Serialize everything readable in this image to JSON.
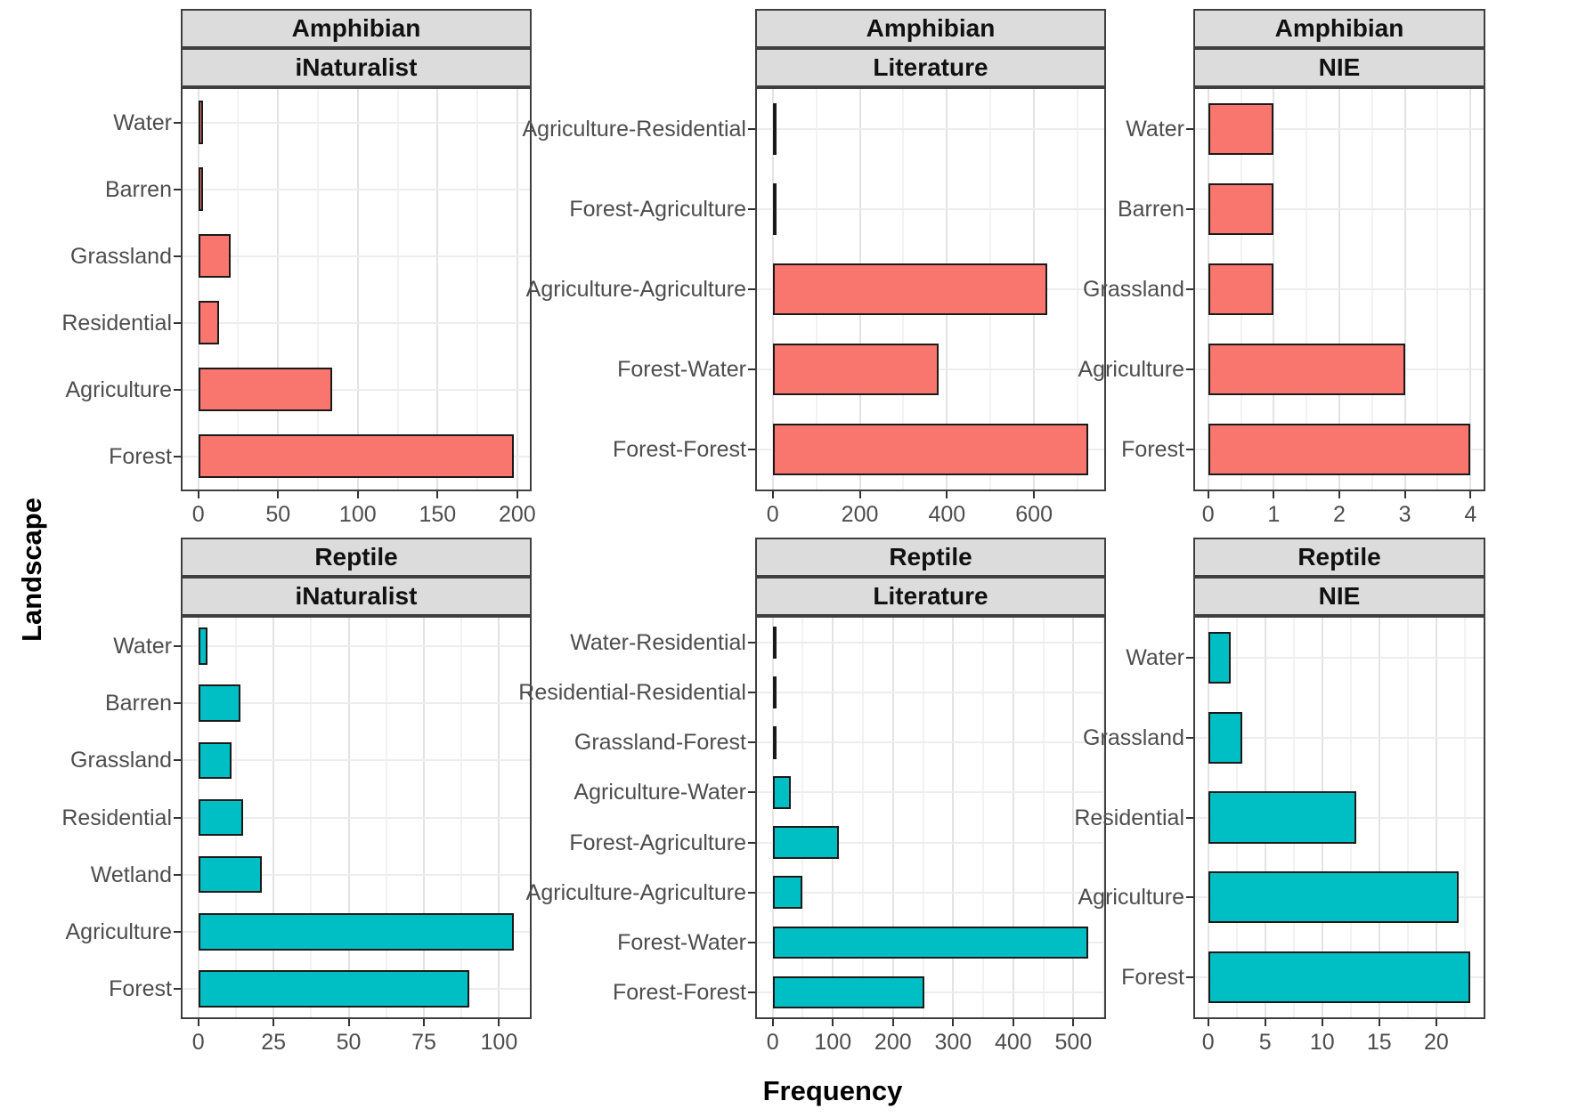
{
  "figure": {
    "xlabel": "Frequency",
    "ylabel": "Landscape",
    "facet_rows": [
      "Amphibian",
      "Reptile"
    ],
    "facet_cols": [
      "iNaturalist",
      "Literature",
      "NIE"
    ],
    "colors": {
      "amphibian_bar": "#F8766D",
      "reptile_bar": "#00BFC4",
      "strip_bg": "#DCDCDC",
      "panel_border": "#3F3F3F",
      "bar_border": "#1A1A1A",
      "grid_major": "#E3E3E3",
      "grid_minor": "#F2F2F2",
      "axis_text": "#4D4D4D"
    }
  },
  "chart_data": [
    {
      "type": "bar",
      "orientation": "horizontal",
      "facet_row": "Amphibian",
      "facet_col": "iNaturalist",
      "series_color": "#F8766D",
      "categories": [
        "Water",
        "Barren",
        "Grassland",
        "Residential",
        "Agriculture",
        "Forest"
      ],
      "values": [
        3,
        3,
        20,
        13,
        84,
        198
      ],
      "xticks": [
        0,
        50,
        100,
        150,
        200
      ],
      "xlim": [
        0,
        208
      ],
      "grid": true
    },
    {
      "type": "bar",
      "orientation": "horizontal",
      "facet_row": "Amphibian",
      "facet_col": "Literature",
      "series_color": "#F8766D",
      "categories": [
        "Agriculture-Residential",
        "Forest-Agriculture",
        "Agriculture-Agriculture",
        "Forest-Water",
        "Forest-Forest"
      ],
      "values": [
        6,
        4,
        630,
        380,
        725
      ],
      "xticks": [
        0,
        200,
        400,
        600
      ],
      "xlim": [
        0,
        761
      ],
      "grid": true
    },
    {
      "type": "bar",
      "orientation": "horizontal",
      "facet_row": "Amphibian",
      "facet_col": "NIE",
      "series_color": "#F8766D",
      "categories": [
        "Water",
        "Barren",
        "Grassland",
        "Agriculture",
        "Forest"
      ],
      "values": [
        1,
        1,
        1,
        3,
        4
      ],
      "xticks": [
        0,
        1,
        2,
        3,
        4
      ],
      "xlim": [
        0,
        4.2
      ],
      "grid": true
    },
    {
      "type": "bar",
      "orientation": "horizontal",
      "facet_row": "Reptile",
      "facet_col": "iNaturalist",
      "series_color": "#00BFC4",
      "categories": [
        "Water",
        "Barren",
        "Grassland",
        "Residential",
        "Wetland",
        "Agriculture",
        "Forest"
      ],
      "values": [
        3,
        14,
        11,
        15,
        21,
        105,
        90
      ],
      "xticks": [
        0,
        25,
        50,
        75,
        100
      ],
      "xlim": [
        0,
        110
      ],
      "grid": true
    },
    {
      "type": "bar",
      "orientation": "horizontal",
      "facet_row": "Reptile",
      "facet_col": "Literature",
      "series_color": "#00BFC4",
      "categories": [
        "Water-Residential",
        "Residential-Residential",
        "Grassland-Forest",
        "Agriculture-Water",
        "Forest-Agriculture",
        "Agriculture-Agriculture",
        "Forest-Water",
        "Forest-Forest"
      ],
      "values": [
        2,
        2,
        2,
        30,
        110,
        50,
        525,
        252
      ],
      "xticks": [
        0,
        100,
        200,
        300,
        400,
        500
      ],
      "xlim": [
        0,
        551
      ],
      "grid": true
    },
    {
      "type": "bar",
      "orientation": "horizontal",
      "facet_row": "Reptile",
      "facet_col": "NIE",
      "series_color": "#00BFC4",
      "categories": [
        "Water",
        "Grassland",
        "Residential",
        "Agriculture",
        "Forest"
      ],
      "values": [
        2,
        3,
        13,
        22,
        23
      ],
      "xticks": [
        0,
        5,
        10,
        15,
        20
      ],
      "xlim": [
        0,
        24.2
      ],
      "grid": true
    }
  ]
}
